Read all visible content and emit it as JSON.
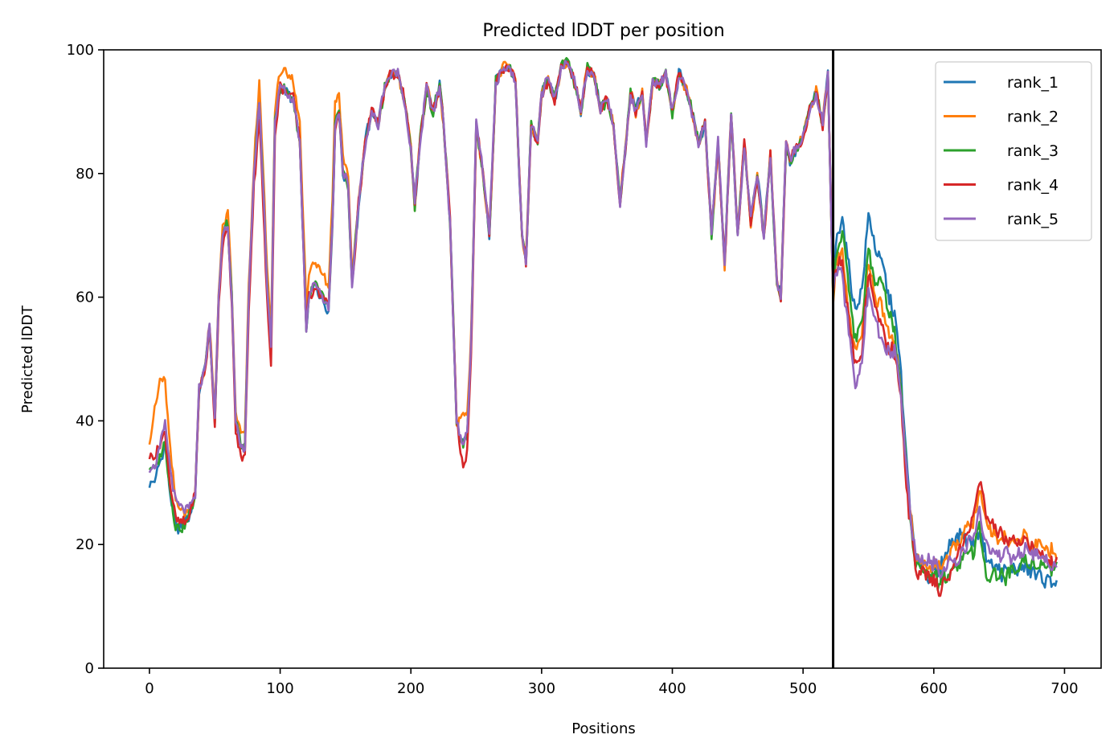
{
  "chart_data": {
    "type": "line",
    "title": "Predicted lDDT per position",
    "xlabel": "Positions",
    "ylabel": "Predicted lDDT",
    "xlim": [
      -35,
      728
    ],
    "ylim": [
      0,
      100
    ],
    "xticks": [
      0,
      100,
      200,
      300,
      400,
      500,
      600,
      700
    ],
    "yticks": [
      0,
      20,
      40,
      60,
      80,
      100
    ],
    "grid": false,
    "legend_position": "top-right",
    "vline_x": 523,
    "anchors": {
      "x": [
        0,
        5,
        8,
        12,
        16,
        20,
        25,
        30,
        35,
        38,
        42,
        46,
        50,
        53,
        56,
        60,
        63,
        66,
        70,
        73,
        76,
        80,
        84,
        87,
        90,
        93,
        96,
        100,
        105,
        110,
        115,
        120,
        122,
        127,
        132,
        137,
        140,
        142,
        145,
        148,
        152,
        155,
        160,
        165,
        170,
        175,
        180,
        185,
        190,
        195,
        200,
        203,
        207,
        212,
        217,
        222,
        225,
        230,
        235,
        240,
        243,
        246,
        250,
        255,
        260,
        265,
        270,
        275,
        280,
        285,
        288,
        292,
        297,
        300,
        305,
        310,
        315,
        320,
        325,
        330,
        335,
        340,
        345,
        350,
        355,
        360,
        363,
        368,
        372,
        377,
        380,
        385,
        390,
        395,
        400,
        405,
        410,
        415,
        420,
        425,
        430,
        435,
        440,
        445,
        450,
        455,
        460,
        465,
        470,
        475,
        480,
        483,
        487,
        490,
        495,
        500,
        505,
        510,
        515,
        519,
        523,
        525,
        530,
        535,
        540,
        545,
        550,
        555,
        560,
        565,
        570,
        575,
        578,
        582,
        586,
        590,
        595,
        600,
        605,
        610,
        615,
        620,
        625,
        630,
        635,
        640,
        645,
        650,
        655,
        660,
        665,
        670,
        675,
        680,
        685,
        690,
        694
      ],
      "y": [
        32,
        33,
        35,
        38,
        30,
        25,
        24,
        25,
        28,
        45,
        48,
        55,
        40,
        60,
        70,
        72,
        60,
        40,
        36,
        36,
        60,
        80,
        92,
        78,
        62,
        52,
        88,
        94,
        93,
        92,
        85,
        55,
        60,
        62,
        60,
        58,
        72,
        88,
        90,
        80,
        78,
        62,
        75,
        85,
        90,
        88,
        94,
        96,
        96,
        92,
        84,
        75,
        85,
        94,
        90,
        94,
        88,
        72,
        40,
        36,
        38,
        52,
        88,
        80,
        70,
        95,
        97,
        97,
        95,
        70,
        66,
        88,
        85,
        93,
        95,
        92,
        97,
        98,
        95,
        90,
        97,
        96,
        90,
        92,
        88,
        75,
        82,
        93,
        90,
        93,
        85,
        95,
        94,
        96,
        90,
        96,
        94,
        90,
        85,
        88,
        70,
        85,
        65,
        90,
        70,
        85,
        72,
        80,
        70,
        83,
        62,
        60,
        85,
        82,
        84,
        86,
        90,
        93,
        88,
        96,
        60,
        65,
        63,
        55,
        48,
        52,
        65,
        60,
        58,
        55,
        53,
        45,
        35,
        25,
        17,
        17,
        16,
        16,
        15,
        16,
        18,
        19,
        20,
        21,
        25,
        20,
        19,
        18,
        18,
        18,
        18,
        19,
        18,
        18,
        17,
        17,
        17
      ],
      "jitter_base": 1.2,
      "jitter_tail": 1.8
    },
    "series": [
      {
        "name": "rank_1",
        "color": "#1f77b4",
        "offsets": [
          [
            0,
            -2
          ],
          [
            20,
            -2
          ],
          [
            35,
            0
          ],
          [
            250,
            0
          ],
          [
            523,
            0
          ],
          [
            530,
            10
          ],
          [
            560,
            8
          ],
          [
            575,
            2
          ],
          [
            600,
            -1
          ],
          [
            610,
            3
          ],
          [
            620,
            3
          ],
          [
            632,
            -2
          ],
          [
            694,
            -3
          ]
        ]
      },
      {
        "name": "rank_2",
        "color": "#ff7f0e",
        "offsets": [
          [
            0,
            5
          ],
          [
            8,
            12
          ],
          [
            20,
            2
          ],
          [
            35,
            0
          ],
          [
            130,
            4
          ],
          [
            140,
            4
          ],
          [
            160,
            0
          ],
          [
            235,
            0
          ],
          [
            240,
            5
          ],
          [
            245,
            2
          ],
          [
            250,
            0
          ],
          [
            523,
            0
          ],
          [
            530,
            4
          ],
          [
            560,
            0
          ],
          [
            590,
            0
          ],
          [
            632,
            3
          ],
          [
            694,
            2
          ]
        ]
      },
      {
        "name": "rank_3",
        "color": "#2ca02c",
        "offsets": [
          [
            0,
            0
          ],
          [
            20,
            -2
          ],
          [
            35,
            0
          ],
          [
            523,
            0
          ],
          [
            530,
            8
          ],
          [
            550,
            2
          ],
          [
            560,
            5
          ],
          [
            575,
            0
          ],
          [
            600,
            -1
          ],
          [
            632,
            -2
          ],
          [
            640,
            -4
          ],
          [
            694,
            0
          ]
        ]
      },
      {
        "name": "rank_4",
        "color": "#d62728",
        "offsets": [
          [
            0,
            2
          ],
          [
            20,
            -1
          ],
          [
            35,
            0
          ],
          [
            95,
            -3
          ],
          [
            100,
            0
          ],
          [
            235,
            0
          ],
          [
            240,
            -4
          ],
          [
            250,
            0
          ],
          [
            523,
            0
          ],
          [
            530,
            2
          ],
          [
            560,
            -3
          ],
          [
            590,
            -1
          ],
          [
            600,
            -2
          ],
          [
            615,
            -2
          ],
          [
            632,
            5
          ],
          [
            694,
            0
          ]
        ]
      },
      {
        "name": "rank_5",
        "color": "#9467bd",
        "offsets": [
          [
            0,
            0
          ],
          [
            20,
            2
          ],
          [
            35,
            0
          ],
          [
            523,
            0
          ],
          [
            530,
            0
          ],
          [
            560,
            -5
          ],
          [
            575,
            0
          ],
          [
            600,
            1
          ],
          [
            620,
            -1
          ],
          [
            632,
            0
          ],
          [
            694,
            0
          ]
        ]
      }
    ]
  }
}
